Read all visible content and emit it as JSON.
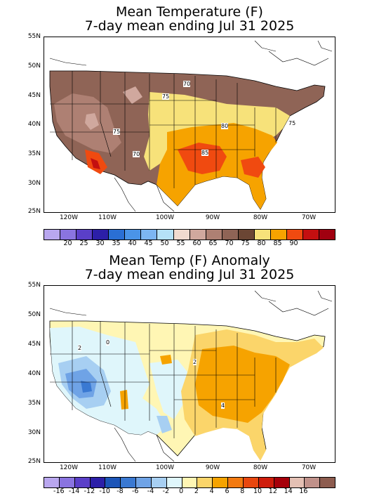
{
  "top_panel": {
    "title_line1": "Mean Temperature (F)",
    "title_line2": "7-day mean ending Jul 31 2025",
    "lat_labels": [
      "55N",
      "50N",
      "45N",
      "40N",
      "35N",
      "30N",
      "25N"
    ],
    "lon_labels": [
      "120W",
      "110W",
      "100W",
      "90W",
      "80W",
      "70W"
    ],
    "contour_labels": [
      "70",
      "75",
      "75",
      "80",
      "75",
      "85",
      "70"
    ],
    "legend": {
      "colors": [
        "#b9a7ef",
        "#8a74e0",
        "#5a3fc8",
        "#2c1fa8",
        "#2a6fd4",
        "#4a94e8",
        "#7cb6f2",
        "#b5e1f7",
        "#f1dbcf",
        "#d0a89e",
        "#ae8073",
        "#8f6456",
        "#6b4634",
        "#f7e27a",
        "#f6a300",
        "#f04a10",
        "#c40f10",
        "#a00010"
      ],
      "labels": [
        "20",
        "25",
        "30",
        "35",
        "40",
        "45",
        "50",
        "55",
        "60",
        "65",
        "70",
        "75",
        "80",
        "85",
        "90"
      ]
    }
  },
  "bottom_panel": {
    "title_line1": "Mean Temp (F) Anomaly",
    "title_line2": "7-day mean ending Jul 31 2025",
    "lat_labels": [
      "55N",
      "50N",
      "45N",
      "40N",
      "35N",
      "30N",
      "25N"
    ],
    "lon_labels": [
      "120W",
      "110W",
      "100W",
      "90W",
      "80W",
      "70W"
    ],
    "contour_labels": [
      "2",
      "0",
      "2",
      "4"
    ],
    "legend": {
      "colors": [
        "#b9a7ef",
        "#8a74e0",
        "#5a3fc8",
        "#2c1fa8",
        "#1c55b8",
        "#3a79d2",
        "#6fa3e6",
        "#a7cff2",
        "#dff6fb",
        "#fff6b4",
        "#fbd56a",
        "#f6a300",
        "#f37a10",
        "#e8470f",
        "#cf1d0c",
        "#a6000a",
        "#e4c0b4",
        "#c0918a",
        "#8d5c4f"
      ],
      "labels": [
        "-16",
        "-14",
        "-12",
        "-10",
        "-8",
        "-6",
        "-4",
        "-2",
        "0",
        "2",
        "4",
        "6",
        "8",
        "10",
        "12",
        "14",
        "16"
      ]
    }
  }
}
